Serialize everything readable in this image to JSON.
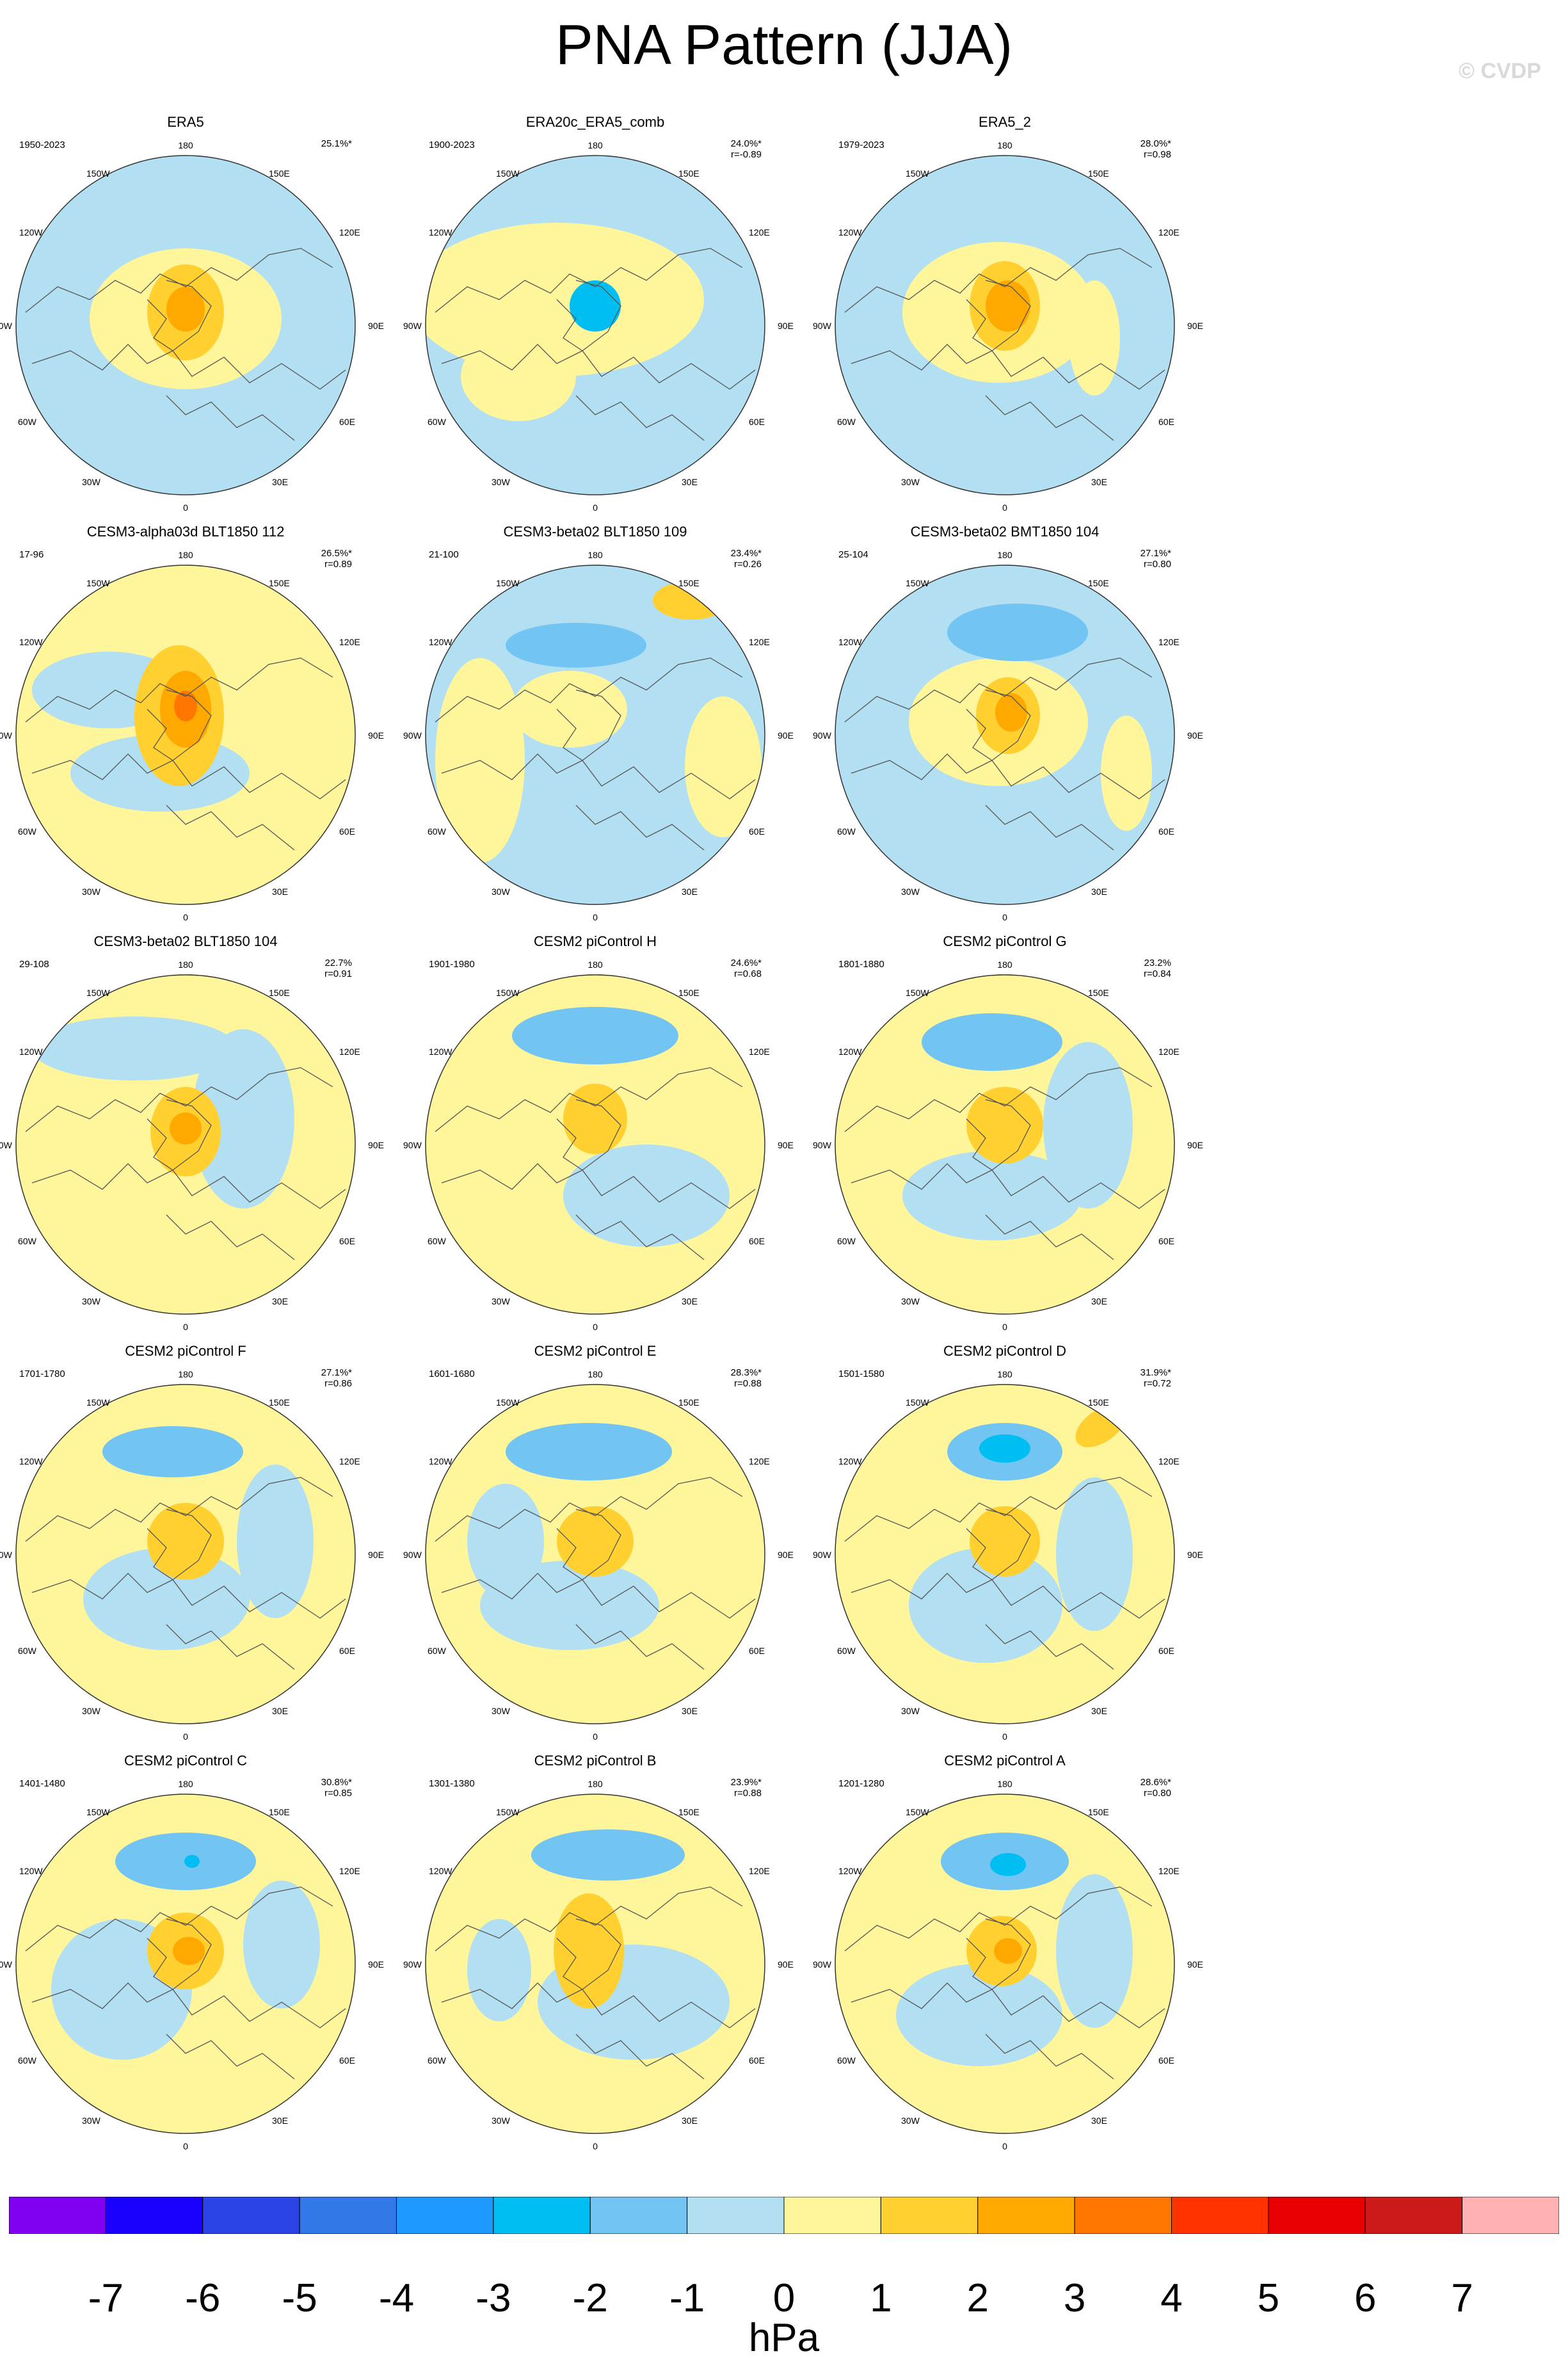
{
  "figure": {
    "title": "PNA Pattern (JJA)",
    "credit": "© CVDP",
    "units": "hPa"
  },
  "lon_labels": {
    "top": "180",
    "bottom": "0",
    "left": "90W",
    "right": "90E",
    "upper_left_1": "150W",
    "upper_left_2": "120W",
    "lower_left_1": "60W",
    "lower_left_2": "30W",
    "upper_right_1": "150E",
    "upper_right_2": "120E",
    "lower_right_1": "60E",
    "lower_right_2": "30E"
  },
  "colors": {
    "ocean_light_blue": "#b3dff2",
    "pale_yellow": "#fff59a",
    "gold": "#ffd02f",
    "orange": "#ffa800",
    "deep_orange": "#ff7700",
    "mid_blue": "#72c4f2",
    "sky_blue": "#00bdf2",
    "coast": "#555555"
  },
  "panels": [
    {
      "title": "ERA5",
      "years": "1950-2023",
      "pct": "25.1%*",
      "r": ""
    },
    {
      "title": "ERA20c_ERA5_comb",
      "years": "1900-2023",
      "pct": "24.0%*",
      "r": "r=-0.89"
    },
    {
      "title": "ERA5_2",
      "years": "1979-2023",
      "pct": "28.0%*",
      "r": "r=0.98"
    },
    {
      "title": "CESM3-alpha03d BLT1850 112",
      "years": "17-96",
      "pct": "26.5%*",
      "r": "r=0.89"
    },
    {
      "title": "CESM3-beta02 BLT1850 109",
      "years": "21-100",
      "pct": "23.4%*",
      "r": "r=0.26"
    },
    {
      "title": "CESM3-beta02 BMT1850 104",
      "years": "25-104",
      "pct": "27.1%*",
      "r": "r=0.80"
    },
    {
      "title": "CESM3-beta02 BLT1850 104",
      "years": "29-108",
      "pct": "22.7%",
      "r": "r=0.91"
    },
    {
      "title": "CESM2 piControl H",
      "years": "1901-1980",
      "pct": "24.6%*",
      "r": "r=0.68"
    },
    {
      "title": "CESM2 piControl G",
      "years": "1801-1880",
      "pct": "23.2%",
      "r": "r=0.84"
    },
    {
      "title": "CESM2 piControl F",
      "years": "1701-1780",
      "pct": "27.1%*",
      "r": "r=0.86"
    },
    {
      "title": "CESM2 piControl E",
      "years": "1601-1680",
      "pct": "28.3%*",
      "r": "r=0.88"
    },
    {
      "title": "CESM2 piControl D",
      "years": "1501-1580",
      "pct": "31.9%*",
      "r": "r=0.72"
    },
    {
      "title": "CESM2 piControl C",
      "years": "1401-1480",
      "pct": "30.8%*",
      "r": "r=0.85"
    },
    {
      "title": "CESM2 piControl B",
      "years": "1301-1380",
      "pct": "23.9%*",
      "r": "r=0.88"
    },
    {
      "title": "CESM2 piControl A",
      "years": "1201-1280",
      "pct": "28.6%*",
      "r": "r=0.80"
    }
  ],
  "colorbar": {
    "labels": [
      "-7",
      "-6",
      "-5",
      "-4",
      "-3",
      "-2",
      "-1",
      "0",
      "1",
      "2",
      "3",
      "4",
      "5",
      "6",
      "7"
    ],
    "colors": [
      "#8000f2",
      "#1a00ff",
      "#2b44e6",
      "#3378e8",
      "#1e9aff",
      "#00bdf2",
      "#72c4f2",
      "#b3dff2",
      "#fff59a",
      "#ffd02f",
      "#ffa800",
      "#ff7700",
      "#ff3300",
      "#e60000",
      "#cc1a1a",
      "#ffb2b2"
    ]
  }
}
